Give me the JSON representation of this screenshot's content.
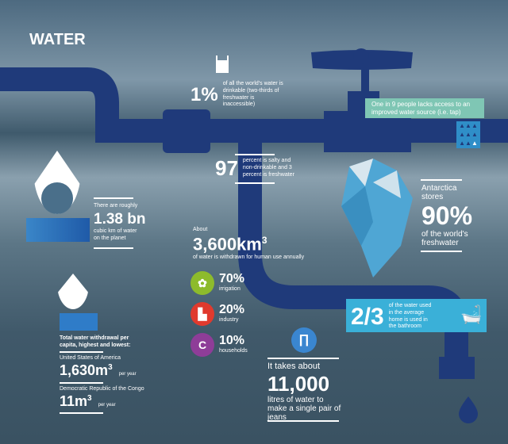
{
  "title": "WATER",
  "drinkable": {
    "value": "1%",
    "text": "of all the world's water is drinkable (two-thirds of freshwater is inaccessible)"
  },
  "access": {
    "text": "One in 9 people lacks access to an improved water source (i.e. tap)"
  },
  "salty": {
    "value": "97",
    "text": "percent is salty and non-drinkable and 3 percent is freshwater"
  },
  "planet": {
    "intro": "There are roughly",
    "value": "1.38 bn",
    "text": "cubic km of water on the planet"
  },
  "antarctica": {
    "intro": "Antarctica stores",
    "value": "90%",
    "text": "of the world's freshwater"
  },
  "withdrawn": {
    "intro": "About",
    "value": "3,600km",
    "sup": "3",
    "text": "of water is withdrawn for human use annually",
    "uses": [
      {
        "value": "70%",
        "label": "irrigation",
        "color": "#8dbb2c"
      },
      {
        "value": "20%",
        "label": "industry",
        "color": "#e03a2e"
      },
      {
        "value": "10%",
        "label": "households",
        "color": "#8e3d98"
      }
    ]
  },
  "percapita": {
    "heading": "Total water withdrawal per capita, highest and lowest:",
    "rows": [
      {
        "country": "United States of America",
        "value": "1,630m",
        "sup": "3",
        "unit": "per year"
      },
      {
        "country": "Democratic Republic of the Congo",
        "value": "11m",
        "sup": "3",
        "unit": "per year"
      }
    ]
  },
  "bathroom": {
    "value": "2/3",
    "text": "of the water used in the average home is used in the bathroom"
  },
  "jeans": {
    "intro": "It takes about",
    "value": "11,000",
    "text": "litres of water to make a single pair of jeans"
  },
  "colors": {
    "pipe": "#1f3a7a",
    "teal": "#7fc6b4",
    "cyan": "#3ab0d8"
  }
}
